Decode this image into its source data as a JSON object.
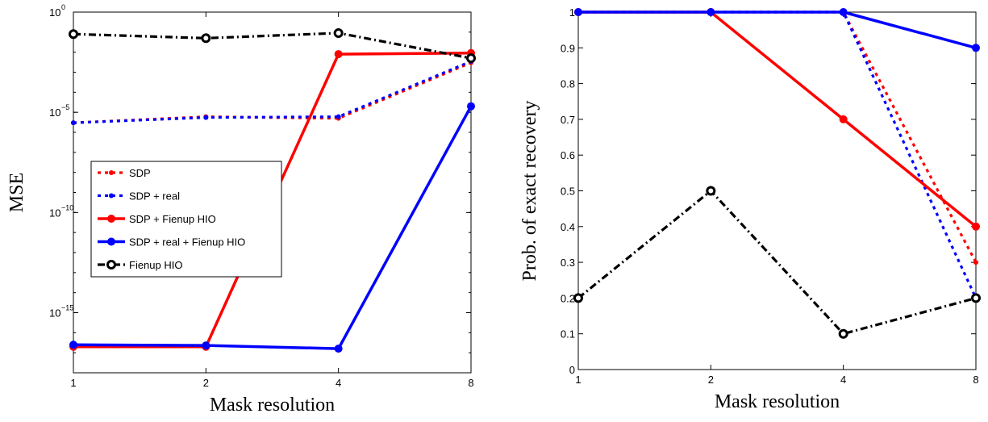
{
  "chart_data": [
    {
      "type": "line",
      "xlabel": "Mask resolution",
      "ylabel": "MSE",
      "yscale": "log",
      "x": [
        1,
        2,
        4,
        8
      ],
      "xticks": [
        "1",
        "2",
        "4",
        "8"
      ],
      "ylim": [
        1e-18,
        1
      ],
      "yticks": [
        {
          "base": "10",
          "exp": "0"
        },
        {
          "base": "10",
          "exp": "−5"
        },
        {
          "base": "10",
          "exp": "−10"
        },
        {
          "base": "10",
          "exp": "−15"
        }
      ],
      "legend_position": "middle-left",
      "series": [
        {
          "name": "SDP",
          "color": "#ff0000",
          "style": "dotted",
          "values": [
            3e-06,
            6e-06,
            5e-06,
            0.003
          ]
        },
        {
          "name": "SDP + real",
          "color": "#0000ff",
          "style": "dotted",
          "values": [
            3e-06,
            5.5e-06,
            6e-06,
            0.0035
          ]
        },
        {
          "name": "SDP + Fienup HIO",
          "color": "#ff0000",
          "style": "solid",
          "values": [
            2e-17,
            2e-17,
            0.008,
            0.009
          ]
        },
        {
          "name": "SDP + real + Fienup HIO",
          "color": "#0000ff",
          "style": "solid",
          "values": [
            2.5e-17,
            2.3e-17,
            1.6e-17,
            2e-05
          ]
        },
        {
          "name": "Fienup HIO",
          "color": "#000000",
          "style": "dashdot",
          "values": [
            0.08,
            0.05,
            0.09,
            0.005
          ]
        }
      ]
    },
    {
      "type": "line",
      "xlabel": "Mask resolution",
      "ylabel": "Prob. of exact recovery",
      "x": [
        1,
        2,
        4,
        8
      ],
      "xticks": [
        "1",
        "2",
        "4",
        "8"
      ],
      "ylim": [
        0,
        1
      ],
      "yticks": [
        "0",
        "0.1",
        "0.2",
        "0.3",
        "0.4",
        "0.5",
        "0.6",
        "0.7",
        "0.8",
        "0.9",
        "1"
      ],
      "series": [
        {
          "name": "SDP",
          "color": "#ff0000",
          "style": "dotted",
          "values": [
            1,
            1,
            1,
            0.3
          ]
        },
        {
          "name": "SDP + real",
          "color": "#0000ff",
          "style": "dotted",
          "values": [
            1,
            1,
            1,
            0.2
          ]
        },
        {
          "name": "SDP + Fienup HIO",
          "color": "#ff0000",
          "style": "solid",
          "values": [
            1,
            1,
            0.7,
            0.4
          ]
        },
        {
          "name": "SDP + real + Fienup HIO",
          "color": "#0000ff",
          "style": "solid",
          "values": [
            1,
            1,
            1,
            0.9
          ]
        },
        {
          "name": "Fienup HIO",
          "color": "#000000",
          "style": "dashdot",
          "values": [
            0.2,
            0.5,
            0.1,
            0.2
          ]
        }
      ]
    }
  ]
}
